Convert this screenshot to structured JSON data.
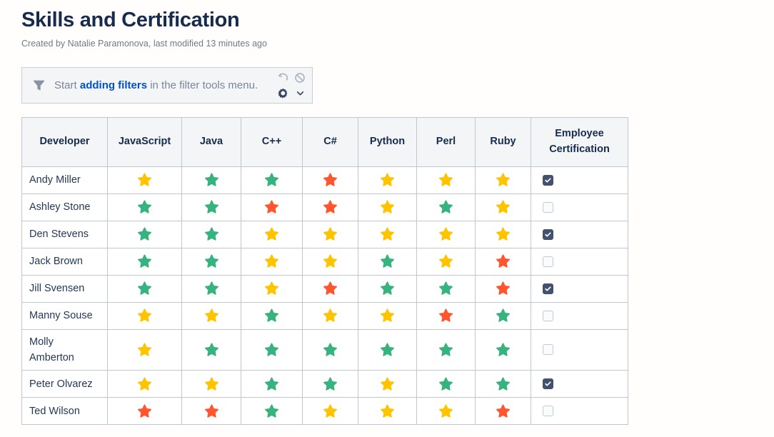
{
  "header": {
    "title": "Skills and Certification",
    "byline": "Created by Natalie Paramonova, last modified 13 minutes ago"
  },
  "filter_bar": {
    "text_prefix": "Start ",
    "link_text": "adding filters",
    "text_suffix": " in the filter tools menu.",
    "icons": [
      "funnel-icon",
      "undo-icon",
      "block-icon",
      "gear-icon",
      "chevron-down-icon"
    ]
  },
  "colors": {
    "star_yellow": "#FFC400",
    "star_green": "#36B37E",
    "star_red": "#FF5630",
    "link_blue": "#0052CC",
    "checkbox_checked": "#42526E",
    "header_bg": "#F4F5F7",
    "table_border": "#C1C7D0",
    "title_text": "#172B4D",
    "icon_gray": "#A5ADBA",
    "icon_dark": "#344563"
  },
  "table": {
    "columns": [
      "Developer",
      "JavaScript",
      "Java",
      "C++",
      "C#",
      "Python",
      "Perl",
      "Ruby",
      "Employee Certification"
    ],
    "rows": [
      {
        "developer": "Andy Miller",
        "ratings": [
          "yellow",
          "green",
          "green",
          "red",
          "yellow",
          "yellow",
          "yellow"
        ],
        "certified": true
      },
      {
        "developer": "Ashley Stone",
        "ratings": [
          "green",
          "green",
          "red",
          "red",
          "yellow",
          "green",
          "yellow"
        ],
        "certified": false
      },
      {
        "developer": "Den Stevens",
        "ratings": [
          "green",
          "green",
          "yellow",
          "yellow",
          "yellow",
          "yellow",
          "yellow"
        ],
        "certified": true
      },
      {
        "developer": "Jack Brown",
        "ratings": [
          "green",
          "green",
          "yellow",
          "yellow",
          "green",
          "yellow",
          "red"
        ],
        "certified": false
      },
      {
        "developer": "Jill Svensen",
        "ratings": [
          "green",
          "green",
          "yellow",
          "red",
          "green",
          "green",
          "red"
        ],
        "certified": true
      },
      {
        "developer": "Manny Souse",
        "ratings": [
          "yellow",
          "yellow",
          "green",
          "yellow",
          "yellow",
          "red",
          "green"
        ],
        "certified": false
      },
      {
        "developer": "Molly Amberton",
        "ratings": [
          "yellow",
          "green",
          "green",
          "green",
          "green",
          "green",
          "green"
        ],
        "certified": false
      },
      {
        "developer": "Peter Olvarez",
        "ratings": [
          "yellow",
          "yellow",
          "green",
          "green",
          "yellow",
          "green",
          "green"
        ],
        "certified": true
      },
      {
        "developer": "Ted Wilson",
        "ratings": [
          "red",
          "red",
          "green",
          "yellow",
          "yellow",
          "yellow",
          "red"
        ],
        "certified": false
      }
    ]
  }
}
